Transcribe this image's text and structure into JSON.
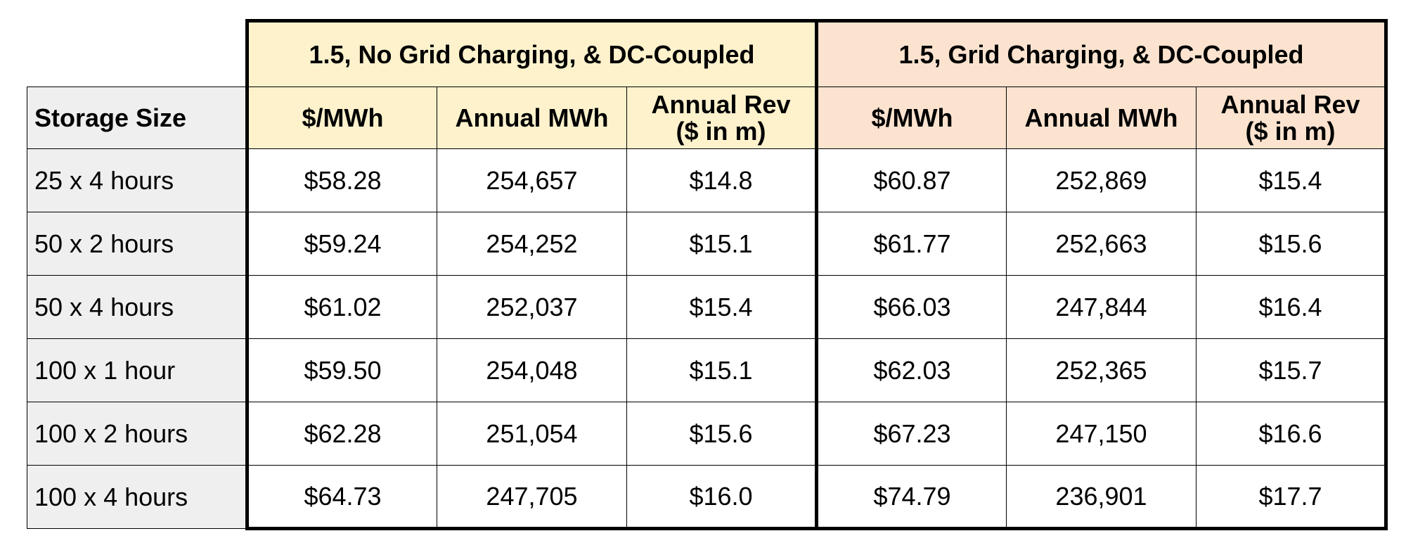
{
  "table": {
    "row_header_label": "Storage Size",
    "groups": [
      {
        "title": "1.5, No Grid Charging, & DC-Coupled",
        "color": "#fdf2cc",
        "columns": [
          {
            "line1": "$/MWh",
            "line2": ""
          },
          {
            "line1": "Annual MWh",
            "line2": ""
          },
          {
            "line1": "Annual Rev",
            "line2": "($ in m)"
          }
        ]
      },
      {
        "title": "1.5, Grid Charging, & DC-Coupled",
        "color": "#fbe3cf",
        "columns": [
          {
            "line1": "$/MWh",
            "line2": ""
          },
          {
            "line1": "Annual MWh",
            "line2": ""
          },
          {
            "line1": "Annual Rev",
            "line2": "($ in m)"
          }
        ]
      }
    ],
    "rows": [
      {
        "label": "25 x 4 hours",
        "values": [
          "$58.28",
          "254,657",
          "$14.8",
          "$60.87",
          "252,869",
          "$15.4"
        ]
      },
      {
        "label": "50 x 2 hours",
        "values": [
          "$59.24",
          "254,252",
          "$15.1",
          "$61.77",
          "252,663",
          "$15.6"
        ]
      },
      {
        "label": "50 x 4 hours",
        "values": [
          "$61.02",
          "252,037",
          "$15.4",
          "$66.03",
          "247,844",
          "$16.4"
        ]
      },
      {
        "label": "100 x 1 hour",
        "values": [
          "$59.50",
          "254,048",
          "$15.1",
          "$62.03",
          "252,365",
          "$15.7"
        ]
      },
      {
        "label": "100 x 2 hours",
        "values": [
          "$62.28",
          "251,054",
          "$15.6",
          "$67.23",
          "247,150",
          "$16.6"
        ]
      },
      {
        "label": "100 x 4 hours",
        "values": [
          "$64.73",
          "247,705",
          "$16.0",
          "$74.79",
          "236,901",
          "$17.7"
        ]
      }
    ]
  }
}
